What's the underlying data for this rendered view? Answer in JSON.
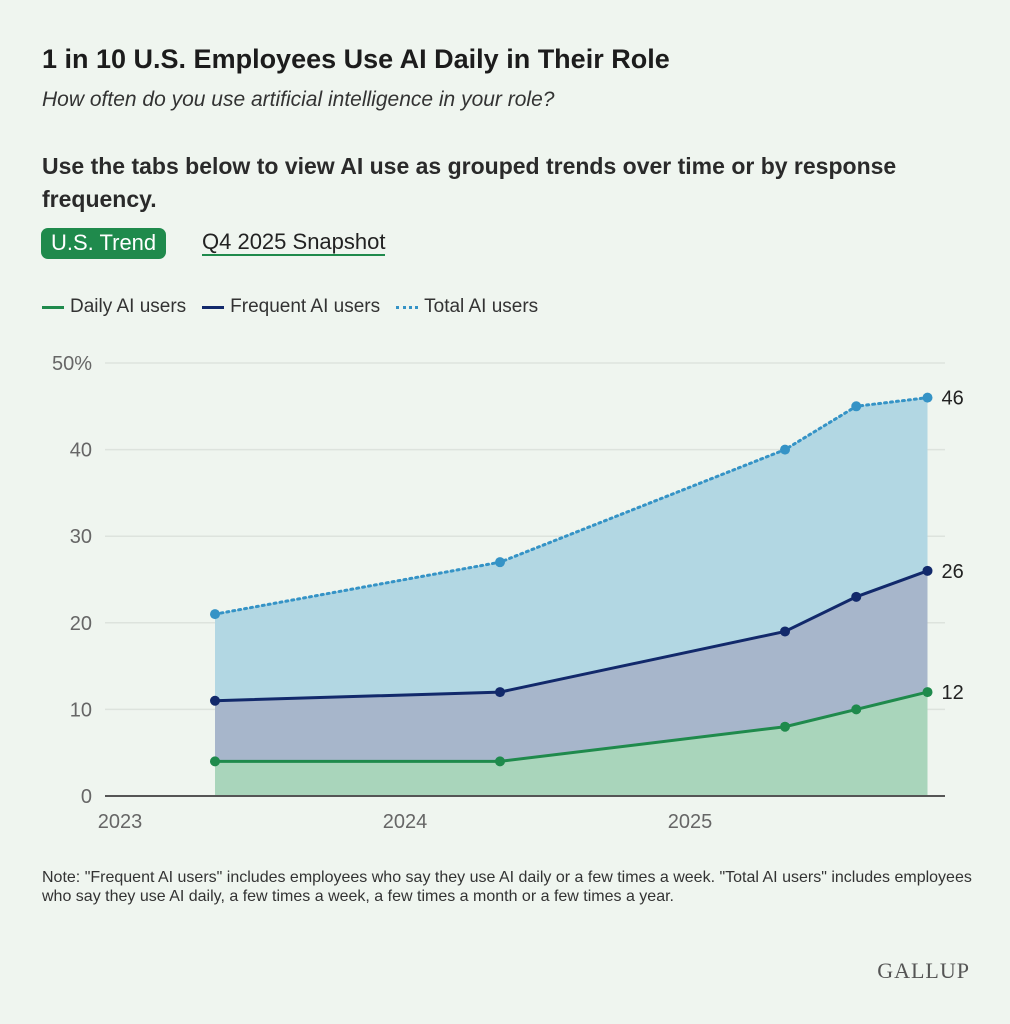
{
  "title": "1 in 10 U.S. Employees Use AI Daily in Their Role",
  "subtitle": "How often do you use artificial intelligence in your role?",
  "instructions": "Use the tabs below to view AI use as grouped trends over time or by response frequency.",
  "tabs": [
    {
      "label": "U.S. Trend",
      "active": true
    },
    {
      "label": "Q4 2025 Snapshot",
      "active": false
    }
  ],
  "note": "Note: \"Frequent AI users\" includes employees who say they use AI daily or a few times a week. \"Total AI users\" includes employees who say they use AI daily, a few times a week, a few times a month or a few times a year.",
  "logo": "GALLUP",
  "chart_data": {
    "type": "area",
    "x": [
      "2023-05",
      "2024-05",
      "2025-05",
      "2025-08",
      "2025-11"
    ],
    "xticks": [
      "2023",
      "2024",
      "2025"
    ],
    "yticks": [
      "0",
      "10",
      "20",
      "30",
      "40",
      "50%"
    ],
    "ylim": [
      0,
      50
    ],
    "grid": true,
    "legend": "top-left",
    "series": [
      {
        "name": "Daily AI users",
        "values": [
          4,
          4,
          8,
          10,
          12
        ],
        "color": "#1f8a4c",
        "fill": "#a9d5bb",
        "style": "solid",
        "end_label": "12"
      },
      {
        "name": "Frequent AI users",
        "values": [
          11,
          12,
          19,
          23,
          26
        ],
        "color": "#12296b",
        "fill": "#a7b6cb",
        "style": "solid",
        "end_label": "26"
      },
      {
        "name": "Total AI users",
        "values": [
          21,
          27,
          40,
          45,
          46
        ],
        "color": "#3593c6",
        "fill": "#b2d7e3",
        "style": "dotted",
        "end_label": "46"
      }
    ]
  }
}
